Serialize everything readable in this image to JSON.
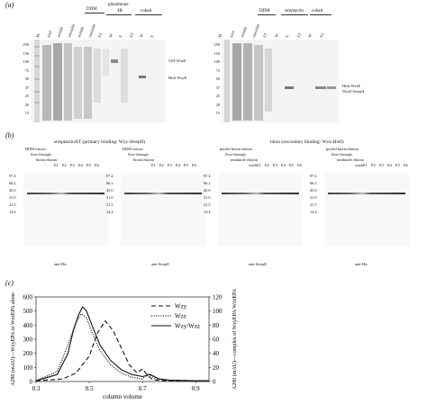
{
  "figure": {
    "panel_a": {
      "label": "(a)",
      "left_gel": {
        "headers": {
          "ddm": "DDM",
          "glutathione": "glutathione",
          "four_b": "4B",
          "cobalt": "cobalt"
        },
        "lanes": [
          "M",
          "total",
          "soluble",
          "insoluble",
          "soluble",
          "insoluble",
          "FT",
          "W",
          "E",
          "FT",
          "W",
          "E"
        ],
        "markers": [
          "250",
          "150",
          "100",
          "75",
          "50",
          "37",
          "25",
          "20",
          "15"
        ],
        "band_labels": [
          "GST-WzzE",
          "His6-WzyE"
        ]
      },
      "right_gel": {
        "headers": {
          "ddm": "DDM",
          "streptactin": "streptactin",
          "cobalt": "cobalt"
        },
        "lanes": [
          "M",
          "total",
          "soluble",
          "insoluble",
          "FT",
          "W",
          "E",
          "FT",
          "W",
          "E2"
        ],
        "markers": [
          "250",
          "150",
          "100",
          "75",
          "50",
          "37",
          "25",
          "20",
          "15"
        ],
        "band_labels": [
          "His6-WzzE",
          "WzyE-StrepII"
        ]
      }
    },
    "panel_b": {
      "label": "(b)",
      "left_title": "streptactinXT (primary binding: Wzy-StrepII)",
      "right_title": "talon (secondary binding: Wzz-His6)",
      "markers": [
        "97.4",
        "66.2",
        "45.0",
        "31.0",
        "21.5",
        "14.4"
      ],
      "blots": [
        {
          "headers": [
            "DDM extract",
            "flow-through",
            "biotin elution"
          ],
          "lanes": [
            "E1",
            "E2",
            "E3",
            "E4",
            "E5",
            "E6"
          ],
          "caption": "anti-His"
        },
        {
          "headers": [
            "DDM extract",
            "flow-through",
            "biotin elution"
          ],
          "lanes": [
            "E1",
            "E2",
            "E3",
            "E4",
            "E5",
            "E6"
          ],
          "caption": "anti-StrepII"
        },
        {
          "headers": [
            "pooled biotin elution",
            "flow-through",
            "imidazole elution"
          ],
          "lanes": [
            "wash",
            "E1",
            "E2",
            "E3",
            "E4",
            "E5",
            "E6"
          ],
          "caption": "anti-StrepII"
        },
        {
          "headers": [
            "pooled biotin elution",
            "flow-through",
            "imidazole elution"
          ],
          "lanes": [
            "wash",
            "E1",
            "E2",
            "E3",
            "E4",
            "E5",
            "E6"
          ],
          "caption": "anti-His"
        }
      ]
    },
    "panel_c": {
      "label": "(c)",
      "left_ylabel": "A280 (mAU)—WzyEPA or WzzEPA alone",
      "right_ylabel": "A280 (mAU)—complex of WzyEPA/WzzEPA"
    }
  },
  "chart_data": {
    "type": "line",
    "xlabel": "column volume",
    "x_ticks": [
      0.3,
      0.5,
      0.7,
      0.9
    ],
    "xlim": [
      0.3,
      0.95
    ],
    "left_axis": {
      "label": "A280 (mAU)—WzyEPA or WzzEPA alone",
      "ylim": [
        0,
        600
      ],
      "ticks": [
        0,
        100,
        200,
        300,
        400,
        500,
        600
      ]
    },
    "right_axis": {
      "label": "A280 (mAU)—complex of WzyEPA/WzzEPA",
      "ylim": [
        0,
        120
      ],
      "ticks": [
        0,
        20,
        40,
        60,
        80,
        100,
        120
      ]
    },
    "legend": {
      "position": "top-right",
      "entries": [
        "Wzy",
        "Wzz",
        "Wzy/Wzz"
      ]
    },
    "series": [
      {
        "name": "Wzy",
        "axis": "left",
        "style": "dashed",
        "x": [
          0.3,
          0.4,
          0.45,
          0.5,
          0.53,
          0.56,
          0.59,
          0.62,
          0.65,
          0.68,
          0.7,
          0.72,
          0.74,
          0.78,
          0.85,
          0.95
        ],
        "y": [
          5,
          18,
          60,
          180,
          340,
          430,
          360,
          240,
          120,
          60,
          90,
          40,
          12,
          6,
          4,
          3
        ]
      },
      {
        "name": "Wzz",
        "axis": "left",
        "style": "dotted",
        "x": [
          0.3,
          0.38,
          0.42,
          0.45,
          0.47,
          0.49,
          0.51,
          0.54,
          0.58,
          0.62,
          0.66,
          0.7,
          0.72,
          0.75,
          0.8,
          0.9,
          0.95
        ],
        "y": [
          5,
          70,
          260,
          420,
          480,
          450,
          350,
          220,
          120,
          60,
          30,
          18,
          55,
          20,
          8,
          4,
          3
        ]
      },
      {
        "name": "Wzy/Wzz",
        "axis": "right",
        "style": "solid",
        "x": [
          0.3,
          0.38,
          0.42,
          0.44,
          0.46,
          0.475,
          0.49,
          0.51,
          0.54,
          0.58,
          0.62,
          0.66,
          0.7,
          0.73,
          0.76,
          0.8,
          0.9,
          0.95
        ],
        "y": [
          1,
          10,
          40,
          72,
          95,
          106,
          100,
          80,
          52,
          30,
          17,
          10,
          7,
          10,
          4,
          2,
          1,
          1
        ]
      }
    ]
  }
}
